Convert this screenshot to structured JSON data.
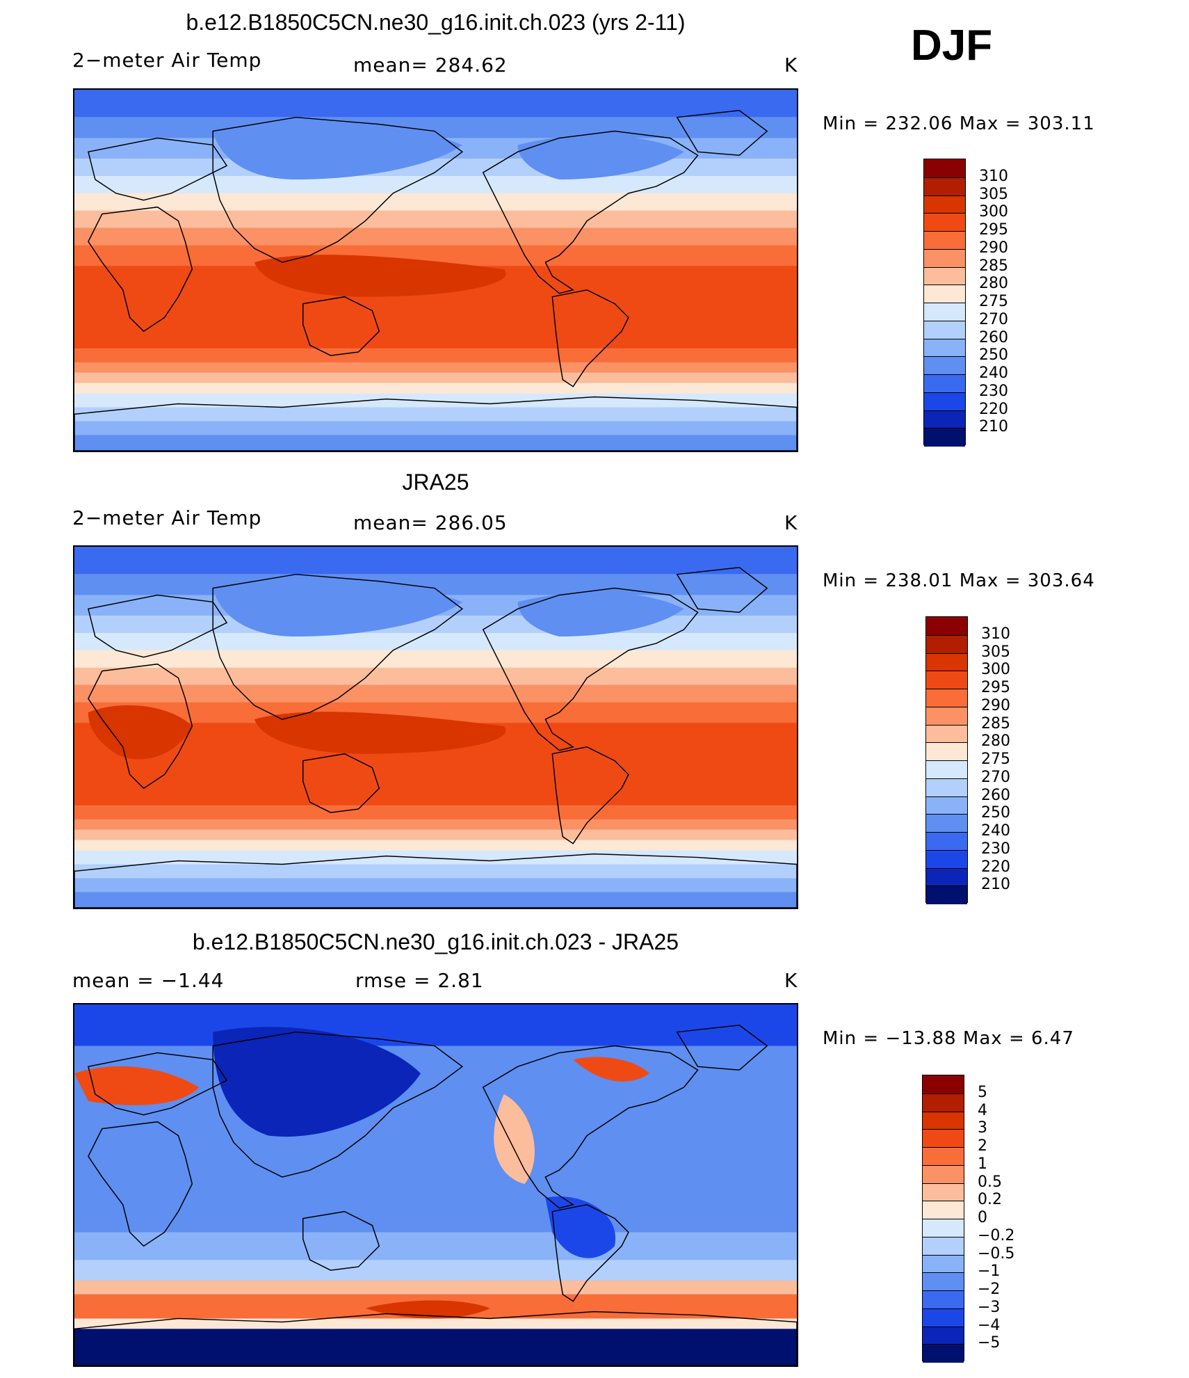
{
  "season": "DJF",
  "panels": [
    {
      "title": "b.e12.B1850C5CN.ne30_g16.init.ch.023 (yrs 2-11)",
      "left_label": "2−meter Air Temp",
      "center_label": "mean=  284.62",
      "unit": "K",
      "minmax": "Min  =  232.06  Max  =  303.11",
      "field": "model"
    },
    {
      "title": "JRA25",
      "left_label": "2−meter Air Temp",
      "center_label": "mean=  286.05",
      "unit": "K",
      "minmax": "Min  =  238.01  Max  =  303.64",
      "field": "obs"
    },
    {
      "title": "b.e12.B1850C5CN.ne30_g16.init.ch.023 - JRA25",
      "left_label": "mean  =    −1.44",
      "center_label": "rmse  =     2.81",
      "unit": "K",
      "minmax": "Min  =  −13.88  Max  =     6.47",
      "field": "diff"
    }
  ],
  "colorbar_temp": {
    "labels": [
      "310",
      "305",
      "300",
      "295",
      "290",
      "285",
      "280",
      "275",
      "270",
      "260",
      "250",
      "240",
      "230",
      "220",
      "210"
    ],
    "colors": [
      "#8b0000",
      "#b21e00",
      "#d83500",
      "#f04a14",
      "#f86d38",
      "#fa9266",
      "#fcbd9c",
      "#fde7d5",
      "#d6e8fb",
      "#b2d0fb",
      "#8ab2f8",
      "#5f8ff1",
      "#3a6af0",
      "#1c47e8",
      "#0a25b8",
      "#00106e"
    ]
  },
  "colorbar_diff": {
    "labels": [
      "5",
      "4",
      "3",
      "2",
      "1",
      "0.5",
      "0.2",
      "0",
      "−0.2",
      "−0.5",
      "−1",
      "−2",
      "−3",
      "−4",
      "−5"
    ],
    "colors": [
      "#8b0000",
      "#b21e00",
      "#d83500",
      "#f04a14",
      "#f86d38",
      "#fa9266",
      "#fcbd9c",
      "#fde7d5",
      "#d6e8fb",
      "#b2d0fb",
      "#8ab2f8",
      "#5f8ff1",
      "#3a6af0",
      "#1c47e8",
      "#0a25b8",
      "#00106e"
    ]
  }
}
